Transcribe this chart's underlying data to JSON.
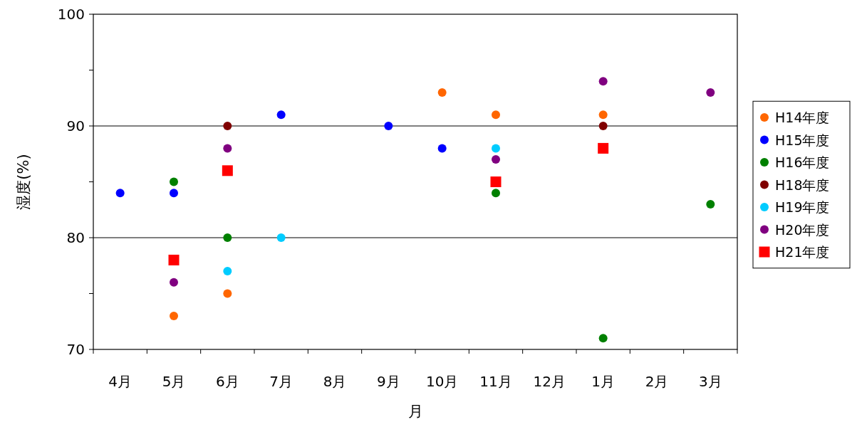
{
  "chart_data": {
    "type": "scatter",
    "xlabel": "月",
    "ylabel": "湿度(%)",
    "categories": [
      "4月",
      "5月",
      "6月",
      "7月",
      "8月",
      "9月",
      "10月",
      "11月",
      "12月",
      "1月",
      "2月",
      "3月"
    ],
    "ylim": [
      70,
      100
    ],
    "yticks": [
      70,
      {
        "value": 75,
        "label": null
      },
      80,
      {
        "value": 85,
        "label": null
      },
      90,
      {
        "value": 95,
        "label": null
      },
      100
    ],
    "grid": "y",
    "legend": "right",
    "marker": "circle",
    "series": [
      {
        "name": "H14年度",
        "color": "#ff6600",
        "values": [
          null,
          73,
          75,
          null,
          null,
          null,
          93,
          91,
          null,
          91,
          null,
          null
        ]
      },
      {
        "name": "H15年度",
        "color": "#0000ff",
        "values": [
          84,
          84,
          null,
          91,
          null,
          90,
          88,
          null,
          null,
          null,
          null,
          null
        ]
      },
      {
        "name": "H16年度",
        "color": "#008000",
        "values": [
          null,
          85,
          80,
          null,
          null,
          null,
          null,
          84,
          null,
          71,
          null,
          83
        ]
      },
      {
        "name": "H18年度",
        "color": "#800000",
        "values": [
          null,
          null,
          90,
          null,
          null,
          null,
          null,
          null,
          null,
          90,
          null,
          null
        ]
      },
      {
        "name": "H19年度",
        "color": "#00ccff",
        "values": [
          null,
          null,
          77,
          80,
          null,
          null,
          null,
          88,
          null,
          null,
          null,
          null
        ]
      },
      {
        "name": "H20年度",
        "color": "#800080",
        "values": [
          null,
          76,
          88,
          null,
          null,
          null,
          null,
          87,
          null,
          94,
          null,
          93
        ]
      },
      {
        "name": "H21年度",
        "color": "#ff0000",
        "marker": "square",
        "values": [
          null,
          78,
          86,
          null,
          null,
          null,
          null,
          85,
          null,
          88,
          null,
          null
        ]
      }
    ]
  }
}
